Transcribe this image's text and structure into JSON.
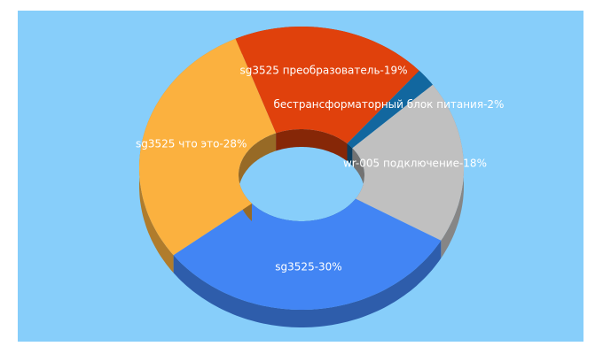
{
  "chart_data": {
    "type": "donut3d",
    "categories": [
      "sg3525 преобразователь-19%",
      "бестрансформаторный блок питания-2%",
      "wr-005 подключение-18%",
      "sg3525-30%",
      "sg3525 что это-28%"
    ],
    "values": [
      19,
      2,
      18,
      30,
      28
    ],
    "colors": [
      "#e0410c",
      "#12679f",
      "#c0c0c0",
      "#4285f4",
      "#fbb13f"
    ],
    "background": "#87cefa"
  }
}
